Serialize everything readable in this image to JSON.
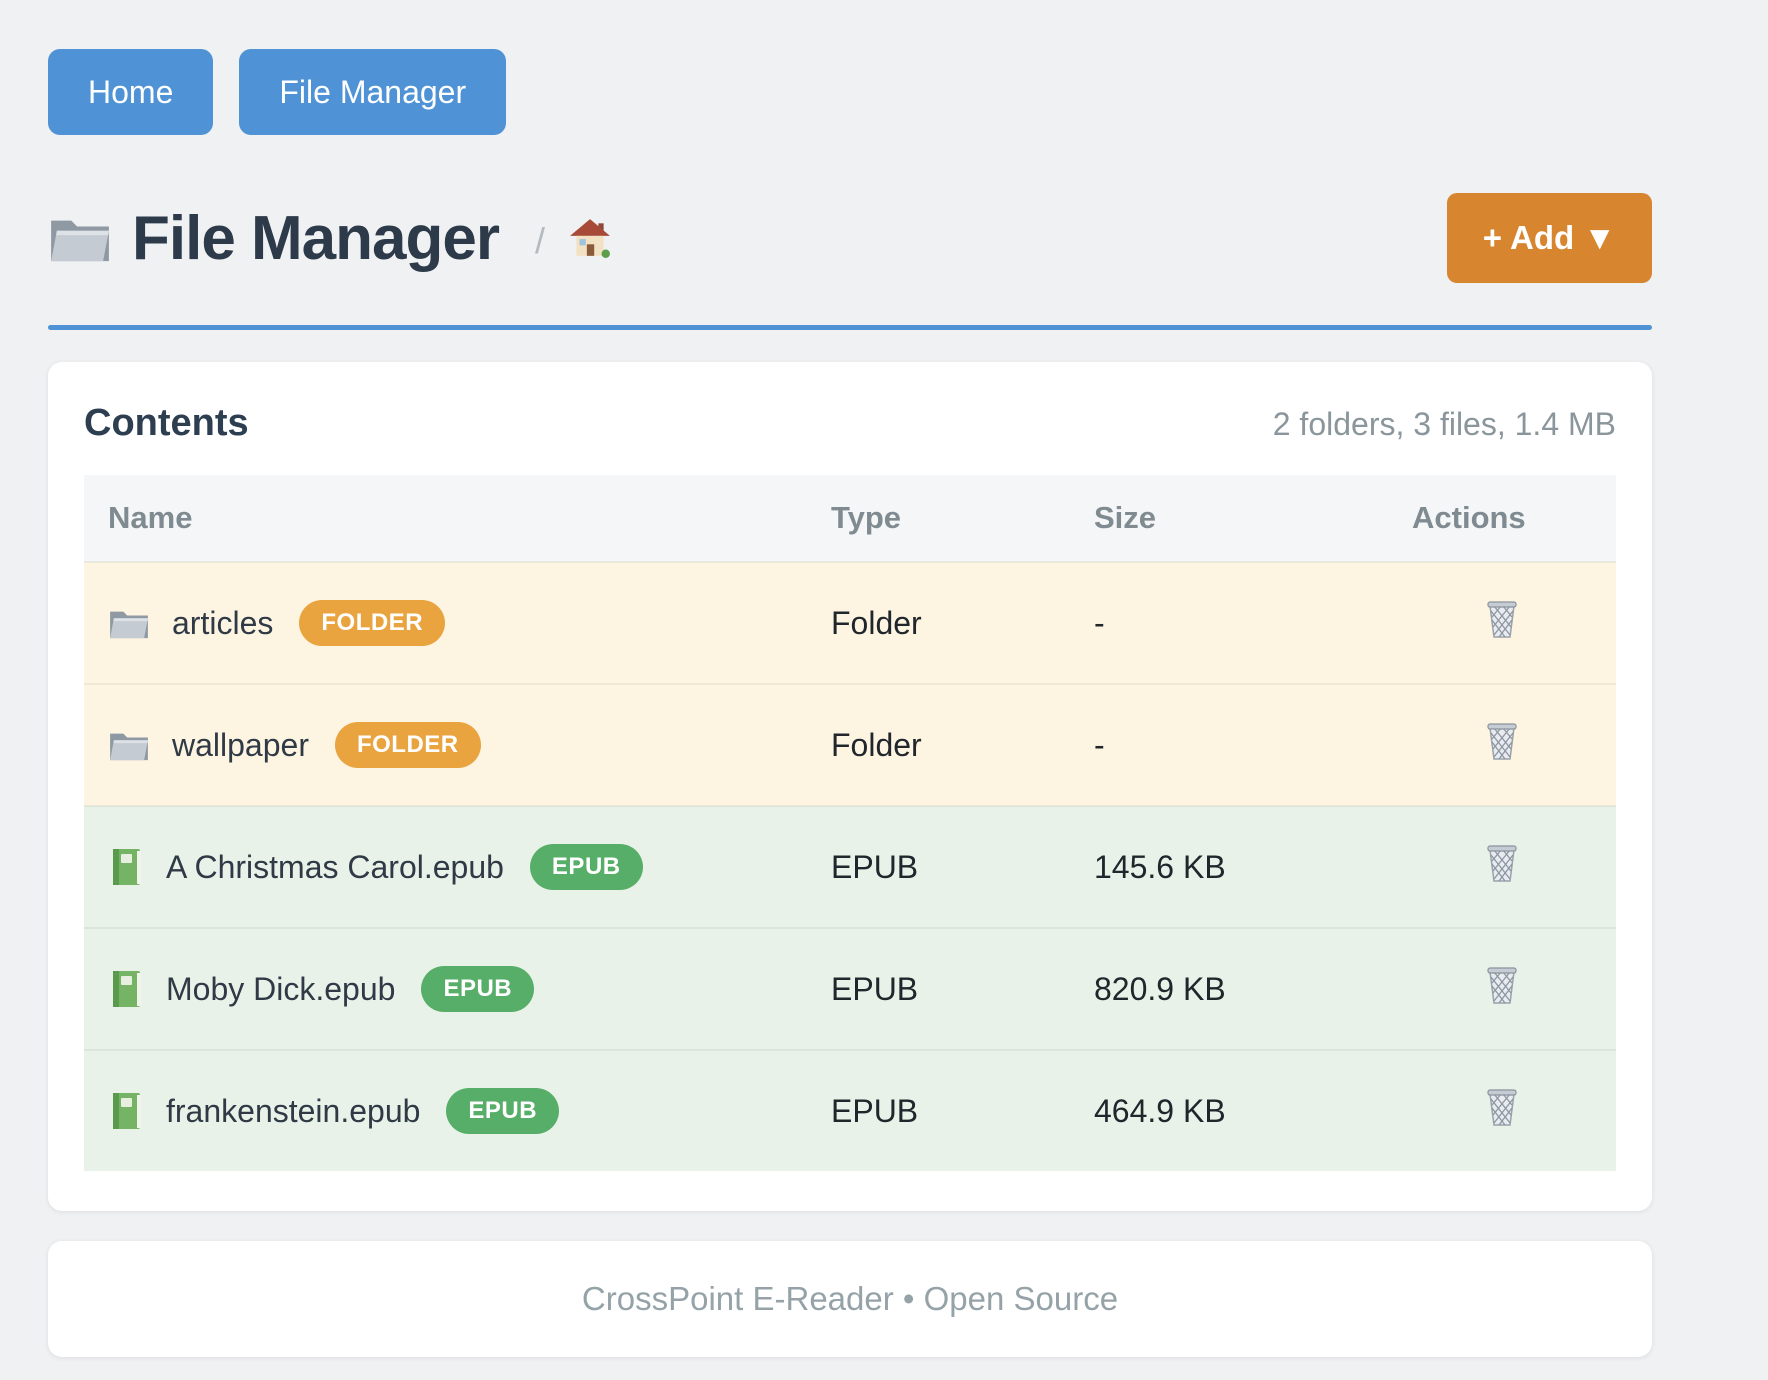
{
  "nav": {
    "home_label": "Home",
    "file_manager_label": "File Manager"
  },
  "header": {
    "title": "File Manager",
    "breadcrumb_separator": "/",
    "add_button_label": "+ Add ▼"
  },
  "contents": {
    "title": "Contents",
    "summary": "2 folders, 3 files, 1.4 MB"
  },
  "table": {
    "headers": {
      "name": "Name",
      "type": "Type",
      "size": "Size",
      "actions": "Actions"
    },
    "rows": [
      {
        "icon": "folder-icon",
        "name": "articles",
        "badge": "FOLDER",
        "type": "Folder",
        "size": "-",
        "kind": "folder"
      },
      {
        "icon": "folder-icon",
        "name": "wallpaper",
        "badge": "FOLDER",
        "type": "Folder",
        "size": "-",
        "kind": "folder"
      },
      {
        "icon": "book-icon",
        "name": "A Christmas Carol.epub",
        "badge": "EPUB",
        "type": "EPUB",
        "size": "145.6 KB",
        "kind": "epub"
      },
      {
        "icon": "book-icon",
        "name": "Moby Dick.epub",
        "badge": "EPUB",
        "type": "EPUB",
        "size": "820.9 KB",
        "kind": "epub"
      },
      {
        "icon": "book-icon",
        "name": "frankenstein.epub",
        "badge": "EPUB",
        "type": "EPUB",
        "size": "464.9 KB",
        "kind": "epub"
      }
    ]
  },
  "footer": {
    "text": "CrossPoint E-Reader • Open Source"
  },
  "colors": {
    "primary_blue": "#4f93d6",
    "accent_orange": "#d7852f",
    "badge_folder": "#e9a43f",
    "badge_epub": "#57ae68",
    "row_folder_bg": "#fdf5e1",
    "row_epub_bg": "#e8f2e8"
  }
}
